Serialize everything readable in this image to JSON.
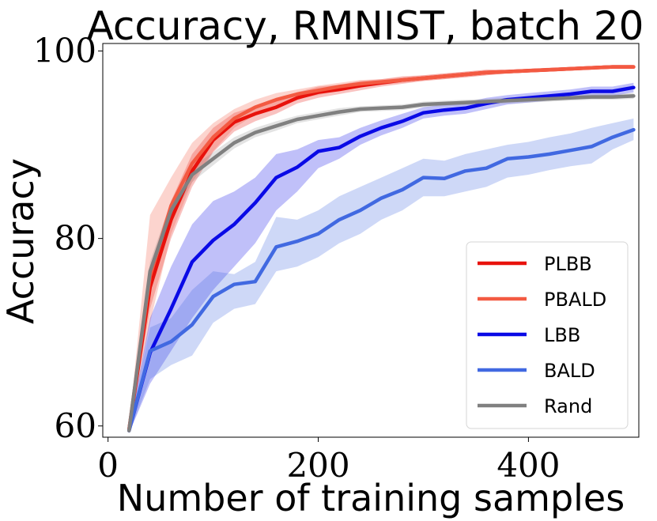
{
  "chart_data": {
    "type": "line",
    "title": "Accuracy, RMNIST, batch 20",
    "xlabel": "Number of training samples",
    "ylabel": "Accuracy",
    "xlim": [
      -5,
      505
    ],
    "ylim": [
      58.8,
      100.8
    ],
    "xticks": [
      0,
      200,
      400
    ],
    "yticks": [
      60,
      80,
      100
    ],
    "grid": false,
    "legend_position": "lower-right",
    "x": [
      20,
      40,
      60,
      80,
      100,
      120,
      140,
      160,
      180,
      200,
      220,
      240,
      260,
      280,
      300,
      320,
      340,
      360,
      380,
      400,
      420,
      440,
      460,
      480,
      500
    ],
    "series": [
      {
        "name": "PLBB",
        "color": "#e8120c",
        "values": [
          59.6,
          74.8,
          82.0,
          87.2,
          90.5,
          92.4,
          93.3,
          94.0,
          95.0,
          95.6,
          95.9,
          96.3,
          96.6,
          96.9,
          97.1,
          97.3,
          97.5,
          97.7,
          97.8,
          97.9,
          98.0,
          98.1,
          98.2,
          98.3,
          98.3
        ],
        "band": [
          [
            59.3,
            59.9
          ],
          [
            72.5,
            77.0
          ],
          [
            80.0,
            84.0
          ],
          [
            85.5,
            89.0
          ],
          [
            89.2,
            91.8
          ],
          [
            91.4,
            93.4
          ],
          [
            92.5,
            94.1
          ],
          [
            93.3,
            94.7
          ],
          [
            94.4,
            95.6
          ],
          [
            95.0,
            96.2
          ],
          [
            95.4,
            96.4
          ],
          [
            95.8,
            96.8
          ],
          [
            96.2,
            97.0
          ],
          [
            96.5,
            97.3
          ],
          [
            96.8,
            97.4
          ],
          [
            97.0,
            97.6
          ],
          [
            97.2,
            97.8
          ],
          [
            97.4,
            98.0
          ],
          [
            97.6,
            98.0
          ],
          [
            97.7,
            98.1
          ],
          [
            97.8,
            98.2
          ],
          [
            97.9,
            98.3
          ],
          [
            98.0,
            98.4
          ],
          [
            98.1,
            98.5
          ],
          [
            98.1,
            98.5
          ]
        ]
      },
      {
        "name": "PBALD",
        "color": "#f35a42",
        "values": [
          59.6,
          76.0,
          83.5,
          88.0,
          90.8,
          92.8,
          94.0,
          94.8,
          95.4,
          95.8,
          96.2,
          96.5,
          96.7,
          96.9,
          97.1,
          97.3,
          97.5,
          97.7,
          97.8,
          97.9,
          98.0,
          98.1,
          98.2,
          98.3,
          98.3
        ],
        "band": [
          [
            59.3,
            59.9
          ],
          [
            71.0,
            82.5
          ],
          [
            80.5,
            86.5
          ],
          [
            86.0,
            90.2
          ],
          [
            89.3,
            92.3
          ],
          [
            91.8,
            93.8
          ],
          [
            93.2,
            94.8
          ],
          [
            94.1,
            95.5
          ],
          [
            94.9,
            95.9
          ],
          [
            95.3,
            96.3
          ],
          [
            95.8,
            96.6
          ],
          [
            96.1,
            96.9
          ],
          [
            96.4,
            97.0
          ],
          [
            96.6,
            97.2
          ],
          [
            96.8,
            97.4
          ],
          [
            97.0,
            97.6
          ],
          [
            97.2,
            97.8
          ],
          [
            97.4,
            98.0
          ],
          [
            97.6,
            98.0
          ],
          [
            97.7,
            98.1
          ],
          [
            97.8,
            98.2
          ],
          [
            97.9,
            98.3
          ],
          [
            98.0,
            98.4
          ],
          [
            98.1,
            98.5
          ],
          [
            98.1,
            98.5
          ]
        ]
      },
      {
        "name": "LBB",
        "color": "#0a0ae6",
        "values": [
          59.5,
          67.8,
          72.5,
          77.5,
          79.8,
          81.5,
          83.8,
          86.5,
          87.6,
          89.3,
          89.7,
          90.9,
          91.8,
          92.5,
          93.4,
          93.7,
          93.9,
          94.4,
          94.8,
          95.0,
          95.2,
          95.4,
          95.7,
          95.7,
          96.1
        ],
        "band": [
          [
            59.2,
            59.8
          ],
          [
            64.5,
            71.5
          ],
          [
            68.0,
            77.0
          ],
          [
            71.5,
            81.5
          ],
          [
            74.5,
            84.0
          ],
          [
            77.0,
            85.0
          ],
          [
            79.5,
            86.5
          ],
          [
            83.0,
            89.0
          ],
          [
            85.0,
            89.5
          ],
          [
            87.5,
            90.5
          ],
          [
            88.5,
            90.8
          ],
          [
            90.0,
            91.8
          ],
          [
            91.0,
            92.6
          ],
          [
            91.8,
            93.3
          ],
          [
            92.8,
            94.0
          ],
          [
            93.1,
            94.3
          ],
          [
            93.3,
            94.5
          ],
          [
            93.8,
            95.0
          ],
          [
            94.3,
            95.3
          ],
          [
            94.5,
            95.5
          ],
          [
            94.7,
            95.7
          ],
          [
            94.9,
            95.9
          ],
          [
            95.2,
            96.2
          ],
          [
            95.2,
            96.2
          ],
          [
            95.6,
            96.6
          ]
        ]
      },
      {
        "name": "BALD",
        "color": "#4169e1",
        "values": [
          59.5,
          68.0,
          69.0,
          70.8,
          73.8,
          75.1,
          75.4,
          79.1,
          79.7,
          80.5,
          82.0,
          83.0,
          84.3,
          85.2,
          86.5,
          86.4,
          87.2,
          87.5,
          88.5,
          88.7,
          89.0,
          89.4,
          89.8,
          90.8,
          91.6
        ],
        "band": [
          [
            59.2,
            59.8
          ],
          [
            65.0,
            70.5
          ],
          [
            66.5,
            71.5
          ],
          [
            67.5,
            74.5
          ],
          [
            71.0,
            76.5
          ],
          [
            72.5,
            76.2
          ],
          [
            73.0,
            77.5
          ],
          [
            76.5,
            82.3
          ],
          [
            77.0,
            82.0
          ],
          [
            78.0,
            83.0
          ],
          [
            79.5,
            84.5
          ],
          [
            80.5,
            85.5
          ],
          [
            82.0,
            86.5
          ],
          [
            83.0,
            87.5
          ],
          [
            84.5,
            88.5
          ],
          [
            84.5,
            88.3
          ],
          [
            85.0,
            89.0
          ],
          [
            85.5,
            89.5
          ],
          [
            86.5,
            90.0
          ],
          [
            86.8,
            90.3
          ],
          [
            87.3,
            90.8
          ],
          [
            87.7,
            91.2
          ],
          [
            88.0,
            91.8
          ],
          [
            89.5,
            92.3
          ],
          [
            90.5,
            92.8
          ]
        ]
      },
      {
        "name": "Rand",
        "color": "#808080",
        "values": [
          59.5,
          76.5,
          83.0,
          86.8,
          88.5,
          90.2,
          91.3,
          92.0,
          92.7,
          93.1,
          93.5,
          93.8,
          93.9,
          94.0,
          94.3,
          94.4,
          94.5,
          94.6,
          94.7,
          94.8,
          94.9,
          95.0,
          95.1,
          95.1,
          95.2
        ],
        "band": [
          [
            59.2,
            59.8
          ],
          [
            75.5,
            77.5
          ],
          [
            82.0,
            84.0
          ],
          [
            86.0,
            87.6
          ],
          [
            87.8,
            89.2
          ],
          [
            89.6,
            90.8
          ],
          [
            90.8,
            91.8
          ],
          [
            91.5,
            92.5
          ],
          [
            92.3,
            93.1
          ],
          [
            92.7,
            93.5
          ],
          [
            93.1,
            93.9
          ],
          [
            93.5,
            94.1
          ],
          [
            93.6,
            94.2
          ],
          [
            93.7,
            94.3
          ],
          [
            94.0,
            94.6
          ],
          [
            94.1,
            94.7
          ],
          [
            94.2,
            94.8
          ],
          [
            94.3,
            94.9
          ],
          [
            94.4,
            95.0
          ],
          [
            94.5,
            95.1
          ],
          [
            94.6,
            95.2
          ],
          [
            94.7,
            95.3
          ],
          [
            94.8,
            95.4
          ],
          [
            94.8,
            95.4
          ],
          [
            94.9,
            95.5
          ]
        ]
      }
    ]
  }
}
